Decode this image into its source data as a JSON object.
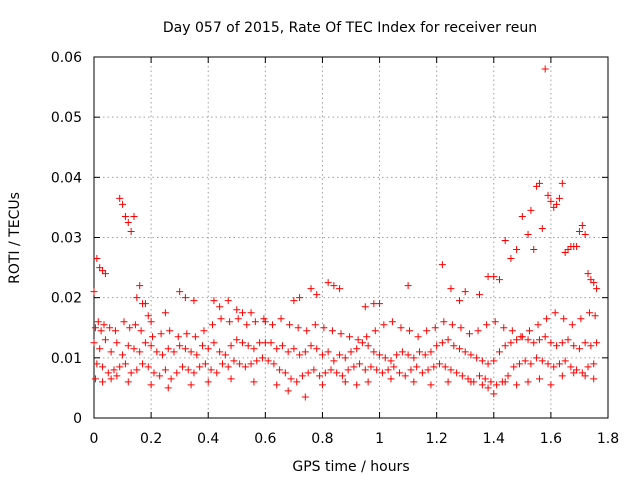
{
  "chart_data": {
    "type": "scatter",
    "title": "Day 057 of 2015, Rate Of TEC Index for receiver reun",
    "xlabel": "GPS time / hours",
    "ylabel": "ROTI / TECUs",
    "xlim": [
      0,
      1.8
    ],
    "ylim": [
      0,
      0.06
    ],
    "xticks": [
      0,
      0.2,
      0.4,
      0.6,
      0.8,
      1,
      1.2,
      1.4,
      1.6,
      1.8
    ],
    "xtick_labels": [
      "0",
      "0.2",
      "0.4",
      "0.6",
      "0.8",
      "1",
      "1.2",
      "1.4",
      "1.6",
      "1.8"
    ],
    "yticks": [
      0,
      0.01,
      0.02,
      0.03,
      0.04,
      0.05,
      0.06
    ],
    "ytick_labels": [
      "0",
      "0.01",
      "0.02",
      "0.03",
      "0.04",
      "0.05",
      "0.06"
    ],
    "grid": true,
    "marker": "plus",
    "color": "#ff0000",
    "series": [
      {
        "name": "ROTI",
        "x": [
          0.0,
          0.02,
          0.04,
          0.06,
          0.08,
          0.1,
          0.12,
          0.14,
          0.16,
          0.18,
          0.2,
          0.22,
          0.24,
          0.26,
          0.28,
          0.3,
          0.32,
          0.34,
          0.36,
          0.38,
          0.4,
          0.42,
          0.44,
          0.46,
          0.48,
          0.5,
          0.52,
          0.54,
          0.56,
          0.58,
          0.6,
          0.62,
          0.64,
          0.66,
          0.68,
          0.7,
          0.72,
          0.74,
          0.76,
          0.78,
          0.8,
          0.82,
          0.84,
          0.86,
          0.88,
          0.9,
          0.92,
          0.94,
          0.96,
          0.98,
          1.0,
          1.02,
          1.04,
          1.06,
          1.08,
          1.1,
          1.12,
          1.14,
          1.16,
          1.18,
          1.2,
          1.22,
          1.24,
          1.26,
          1.28,
          1.3,
          1.32,
          1.34,
          1.36,
          1.38,
          1.4,
          1.42,
          1.44,
          1.46,
          1.48,
          1.5,
          1.52,
          1.54,
          1.56,
          1.58,
          1.6,
          1.62,
          1.64,
          1.66,
          1.68,
          1.7,
          1.72,
          1.74,
          1.76,
          0.01,
          0.03,
          0.05,
          0.07,
          0.09,
          0.11,
          0.13,
          0.15,
          0.17,
          0.19,
          0.21,
          0.23,
          0.25,
          0.27,
          0.29,
          0.31,
          0.33,
          0.35,
          0.37,
          0.39,
          0.41,
          0.43,
          0.45,
          0.47,
          0.49,
          0.51,
          0.53,
          0.55,
          0.57,
          0.59,
          0.61,
          0.63,
          0.65,
          0.67,
          0.69,
          0.71,
          0.73,
          0.75,
          0.77,
          0.79,
          0.81,
          0.83,
          0.85,
          0.87,
          0.89,
          0.91,
          0.93,
          0.95,
          0.97,
          0.99,
          1.01,
          1.03,
          1.05,
          1.07,
          1.09,
          1.11,
          1.13,
          1.15,
          1.17,
          1.19,
          1.21,
          1.23,
          1.25,
          1.27,
          1.29,
          1.31,
          1.33,
          1.35,
          1.37,
          1.39,
          1.41,
          1.43,
          1.45,
          1.47,
          1.49,
          1.51,
          1.53,
          1.55,
          1.57,
          1.59,
          1.61,
          1.63,
          1.65,
          1.67,
          1.69,
          1.71,
          1.73,
          1.75,
          0.005,
          0.015,
          0.025,
          0.035,
          0.055,
          0.075,
          0.105,
          0.125,
          0.145,
          0.165,
          0.205,
          0.235,
          0.265,
          0.295,
          0.325,
          0.355,
          0.385,
          0.415,
          0.445,
          0.475,
          0.505,
          0.535,
          0.565,
          0.595,
          0.625,
          0.655,
          0.685,
          0.715,
          0.745,
          0.775,
          0.805,
          0.835,
          0.865,
          0.895,
          0.925,
          0.955,
          0.985,
          1.015,
          1.045,
          1.075,
          1.105,
          1.135,
          1.165,
          1.195,
          1.225,
          1.255,
          1.285,
          1.315,
          1.345,
          1.375,
          1.405,
          1.435,
          1.465,
          1.495,
          1.525,
          1.555,
          1.585,
          1.615,
          1.645,
          1.675,
          1.705,
          1.735,
          1.755,
          0.0,
          0.01,
          0.02,
          0.03,
          0.04,
          0.09,
          0.1,
          0.11,
          0.12,
          0.13,
          0.14,
          0.15,
          0.16,
          0.17,
          0.18,
          0.19,
          0.2,
          0.25,
          0.3,
          0.32,
          0.35,
          0.42,
          0.44,
          0.47,
          0.5,
          0.52,
          0.55,
          0.6,
          0.7,
          0.72,
          0.76,
          0.78,
          0.82,
          0.84,
          0.86,
          0.95,
          0.98,
          1.0,
          1.1,
          1.22,
          1.25,
          1.28,
          1.3,
          1.35,
          1.38,
          1.4,
          1.42,
          1.44,
          1.46,
          1.48,
          1.5,
          1.52,
          1.53,
          1.54,
          1.55,
          1.56,
          1.57,
          1.58,
          1.59,
          1.6,
          1.61,
          1.62,
          1.63,
          1.64,
          1.65,
          1.66,
          1.67,
          1.68,
          1.69,
          1.7,
          1.71,
          1.72,
          1.73,
          1.74,
          1.75,
          1.76,
          0.005,
          0.03,
          0.06,
          0.08,
          0.12,
          0.2,
          0.26,
          0.34,
          0.4,
          0.48,
          0.56,
          0.64,
          0.68,
          0.74,
          0.8,
          0.88,
          0.92,
          0.96,
          1.04,
          1.12,
          1.18,
          1.24,
          1.32,
          1.36,
          1.38,
          1.4,
          1.44,
          1.48,
          1.52,
          1.56,
          1.6,
          1.64,
          1.68,
          1.72,
          1.75
        ],
        "y": [
          0.0125,
          0.0115,
          0.013,
          0.011,
          0.0125,
          0.0105,
          0.012,
          0.0115,
          0.011,
          0.0125,
          0.012,
          0.011,
          0.0105,
          0.0115,
          0.011,
          0.012,
          0.0115,
          0.011,
          0.0105,
          0.012,
          0.0115,
          0.0125,
          0.011,
          0.0105,
          0.012,
          0.013,
          0.0125,
          0.012,
          0.0115,
          0.0125,
          0.0125,
          0.0125,
          0.0115,
          0.012,
          0.011,
          0.0115,
          0.0105,
          0.011,
          0.012,
          0.0115,
          0.0105,
          0.011,
          0.0095,
          0.0105,
          0.01,
          0.011,
          0.0115,
          0.0125,
          0.012,
          0.011,
          0.0105,
          0.01,
          0.0095,
          0.0105,
          0.011,
          0.0105,
          0.01,
          0.011,
          0.0105,
          0.011,
          0.012,
          0.0125,
          0.013,
          0.012,
          0.0115,
          0.011,
          0.0105,
          0.01,
          0.0095,
          0.009,
          0.0095,
          0.011,
          0.012,
          0.0125,
          0.013,
          0.0135,
          0.013,
          0.0125,
          0.013,
          0.0135,
          0.0125,
          0.012,
          0.0125,
          0.013,
          0.012,
          0.0115,
          0.0125,
          0.012,
          0.0125,
          0.009,
          0.0085,
          0.0075,
          0.008,
          0.0085,
          0.009,
          0.0075,
          0.008,
          0.009,
          0.0085,
          0.0075,
          0.007,
          0.008,
          0.0065,
          0.0075,
          0.0085,
          0.008,
          0.0075,
          0.0085,
          0.009,
          0.008,
          0.0075,
          0.009,
          0.0085,
          0.0095,
          0.009,
          0.0085,
          0.009,
          0.0095,
          0.01,
          0.0095,
          0.009,
          0.008,
          0.0075,
          0.0065,
          0.006,
          0.007,
          0.0075,
          0.008,
          0.007,
          0.0075,
          0.008,
          0.0075,
          0.007,
          0.008,
          0.0085,
          0.009,
          0.008,
          0.0085,
          0.008,
          0.0075,
          0.008,
          0.0085,
          0.0075,
          0.007,
          0.008,
          0.0085,
          0.0075,
          0.008,
          0.0085,
          0.009,
          0.0085,
          0.008,
          0.0075,
          0.007,
          0.0065,
          0.006,
          0.007,
          0.0065,
          0.006,
          0.0055,
          0.006,
          0.007,
          0.0085,
          0.009,
          0.0095,
          0.009,
          0.01,
          0.0095,
          0.009,
          0.0085,
          0.009,
          0.0095,
          0.0085,
          0.008,
          0.0075,
          0.0085,
          0.009,
          0.015,
          0.016,
          0.0145,
          0.0155,
          0.015,
          0.0145,
          0.016,
          0.015,
          0.0155,
          0.0145,
          0.0135,
          0.014,
          0.0145,
          0.0135,
          0.014,
          0.0135,
          0.0145,
          0.0155,
          0.0165,
          0.016,
          0.0165,
          0.0155,
          0.016,
          0.0165,
          0.0155,
          0.0165,
          0.0155,
          0.015,
          0.0145,
          0.0155,
          0.015,
          0.0145,
          0.014,
          0.0135,
          0.013,
          0.0135,
          0.0145,
          0.0155,
          0.016,
          0.015,
          0.0145,
          0.0135,
          0.0145,
          0.015,
          0.016,
          0.0155,
          0.015,
          0.014,
          0.0145,
          0.0155,
          0.016,
          0.015,
          0.0145,
          0.0135,
          0.0145,
          0.0155,
          0.0165,
          0.0175,
          0.0165,
          0.0155,
          0.0165,
          0.0175,
          0.017,
          0.021,
          0.0265,
          0.025,
          0.0245,
          0.024,
          0.0365,
          0.0355,
          0.0335,
          0.0325,
          0.031,
          0.0335,
          0.02,
          0.022,
          0.019,
          0.019,
          0.017,
          0.016,
          0.0175,
          0.021,
          0.02,
          0.0195,
          0.0195,
          0.0185,
          0.0195,
          0.018,
          0.0175,
          0.0175,
          0.016,
          0.0195,
          0.02,
          0.0215,
          0.0205,
          0.0225,
          0.022,
          0.0215,
          0.0185,
          0.019,
          0.019,
          0.022,
          0.0255,
          0.0215,
          0.0195,
          0.021,
          0.0205,
          0.0235,
          0.0235,
          0.023,
          0.0295,
          0.0265,
          0.028,
          0.0335,
          0.0305,
          0.0345,
          0.028,
          0.0385,
          0.039,
          0.0315,
          0.058,
          0.037,
          0.036,
          0.035,
          0.0355,
          0.0365,
          0.039,
          0.0275,
          0.028,
          0.0285,
          0.0285,
          0.0285,
          0.031,
          0.032,
          0.0305,
          0.024,
          0.023,
          0.0225,
          0.0215,
          0.0065,
          0.006,
          0.0065,
          0.007,
          0.006,
          0.0055,
          0.005,
          0.0055,
          0.006,
          0.0065,
          0.006,
          0.0055,
          0.0045,
          0.0035,
          0.0055,
          0.006,
          0.0055,
          0.006,
          0.0065,
          0.006,
          0.0055,
          0.006,
          0.006,
          0.0055,
          0.005,
          0.004,
          0.006,
          0.0055,
          0.006,
          0.0065,
          0.0055,
          0.007,
          0.0075,
          0.007,
          0.0065
        ]
      }
    ]
  }
}
